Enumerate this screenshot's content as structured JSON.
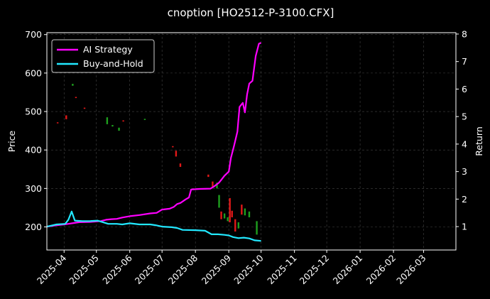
{
  "chart_data": {
    "type": "line",
    "title": "cnoption [HO2512-P-3100.CFX]",
    "ylabel": "Price",
    "y2label": "Return",
    "x_ticks": [
      "2025-04",
      "2025-05",
      "2025-06",
      "2025-07",
      "2025-08",
      "2025-09",
      "2025-10",
      "2025-11",
      "2025-12",
      "2026-01",
      "2026-02",
      "2026-03"
    ],
    "xlim": [
      "2025-03-16",
      "2026-03-31"
    ],
    "ylim": [
      140,
      705
    ],
    "y_ticks": [
      200,
      300,
      400,
      500,
      600,
      700
    ],
    "y2lim": [
      0.15,
      8.05
    ],
    "y2_ticks": [
      1,
      2,
      3,
      4,
      5,
      6,
      7,
      8
    ],
    "grid": true,
    "legend_position": "top-left",
    "series": [
      {
        "name": "AI Strategy",
        "axis": "right",
        "color": "#ff00ff",
        "points": [
          [
            "2025-03-16",
            1.0
          ],
          [
            "2025-03-25",
            1.05
          ],
          [
            "2025-04-01",
            1.08
          ],
          [
            "2025-04-05",
            1.1
          ],
          [
            "2025-04-10",
            1.13
          ],
          [
            "2025-04-15",
            1.16
          ],
          [
            "2025-04-25",
            1.17
          ],
          [
            "2025-05-05",
            1.2
          ],
          [
            "2025-05-10",
            1.25
          ],
          [
            "2025-05-15",
            1.27
          ],
          [
            "2025-05-20",
            1.28
          ],
          [
            "2025-05-25",
            1.33
          ],
          [
            "2025-06-01",
            1.38
          ],
          [
            "2025-06-10",
            1.42
          ],
          [
            "2025-06-20",
            1.48
          ],
          [
            "2025-06-26",
            1.5
          ],
          [
            "2025-07-01",
            1.62
          ],
          [
            "2025-07-08",
            1.65
          ],
          [
            "2025-07-12",
            1.72
          ],
          [
            "2025-07-15",
            1.82
          ],
          [
            "2025-07-18",
            1.86
          ],
          [
            "2025-07-23",
            1.99
          ],
          [
            "2025-07-26",
            2.06
          ],
          [
            "2025-07-28",
            2.35
          ],
          [
            "2025-08-05",
            2.37
          ],
          [
            "2025-08-15",
            2.38
          ],
          [
            "2025-08-18",
            2.45
          ],
          [
            "2025-08-23",
            2.6
          ],
          [
            "2025-08-26",
            2.75
          ],
          [
            "2025-08-28",
            2.85
          ],
          [
            "2025-09-01",
            3.0
          ],
          [
            "2025-09-03",
            3.5
          ],
          [
            "2025-09-06",
            3.95
          ],
          [
            "2025-09-09",
            4.45
          ],
          [
            "2025-09-11",
            5.35
          ],
          [
            "2025-09-14",
            5.5
          ],
          [
            "2025-09-16",
            5.15
          ],
          [
            "2025-09-18",
            5.8
          ],
          [
            "2025-09-20",
            6.2
          ],
          [
            "2025-09-23",
            6.3
          ],
          [
            "2025-09-26",
            7.2
          ],
          [
            "2025-09-29",
            7.65
          ],
          [
            "2025-10-01",
            7.68
          ]
        ]
      },
      {
        "name": "Buy-and-Hold",
        "axis": "right",
        "color": "#22e8ff",
        "points": [
          [
            "2025-03-16",
            1.0
          ],
          [
            "2025-03-25",
            1.08
          ],
          [
            "2025-04-02",
            1.1
          ],
          [
            "2025-04-05",
            1.25
          ],
          [
            "2025-04-08",
            1.55
          ],
          [
            "2025-04-11",
            1.22
          ],
          [
            "2025-04-18",
            1.2
          ],
          [
            "2025-04-25",
            1.2
          ],
          [
            "2025-05-02",
            1.22
          ],
          [
            "2025-05-08",
            1.15
          ],
          [
            "2025-05-12",
            1.1
          ],
          [
            "2025-05-20",
            1.1
          ],
          [
            "2025-05-25",
            1.08
          ],
          [
            "2025-06-01",
            1.12
          ],
          [
            "2025-06-10",
            1.08
          ],
          [
            "2025-06-20",
            1.08
          ],
          [
            "2025-06-25",
            1.05
          ],
          [
            "2025-07-01",
            1.0
          ],
          [
            "2025-07-10",
            0.98
          ],
          [
            "2025-07-15",
            0.95
          ],
          [
            "2025-07-20",
            0.88
          ],
          [
            "2025-08-01",
            0.87
          ],
          [
            "2025-08-10",
            0.85
          ],
          [
            "2025-08-16",
            0.72
          ],
          [
            "2025-08-22",
            0.72
          ],
          [
            "2025-08-28",
            0.7
          ],
          [
            "2025-09-01",
            0.68
          ],
          [
            "2025-09-05",
            0.62
          ],
          [
            "2025-09-10",
            0.58
          ],
          [
            "2025-09-15",
            0.6
          ],
          [
            "2025-09-20",
            0.57
          ],
          [
            "2025-09-25",
            0.5
          ],
          [
            "2025-10-01",
            0.48
          ]
        ]
      }
    ],
    "candles": [
      {
        "date": "2025-03-26",
        "open": 470,
        "close": 472,
        "up": false
      },
      {
        "date": "2025-04-03",
        "open": 490,
        "close": 480,
        "up": false
      },
      {
        "date": "2025-04-09",
        "open": 572,
        "close": 567,
        "up": true
      },
      {
        "date": "2025-04-12",
        "open": 538,
        "close": 535,
        "up": false
      },
      {
        "date": "2025-04-20",
        "open": 510,
        "close": 507,
        "up": false
      },
      {
        "date": "2025-05-11",
        "open": 485,
        "close": 467,
        "up": true
      },
      {
        "date": "2025-05-16",
        "open": 465,
        "close": 461,
        "up": true
      },
      {
        "date": "2025-05-22",
        "open": 458,
        "close": 450,
        "up": true
      },
      {
        "date": "2025-05-26",
        "open": 477,
        "close": 474,
        "up": false
      },
      {
        "date": "2025-06-15",
        "open": 481,
        "close": 478,
        "up": true
      },
      {
        "date": "2025-07-11",
        "open": 410,
        "close": 407,
        "up": false
      },
      {
        "date": "2025-07-14",
        "open": 398,
        "close": 383,
        "up": false
      },
      {
        "date": "2025-07-18",
        "open": 365,
        "close": 356,
        "up": false
      },
      {
        "date": "2025-08-13",
        "open": 336,
        "close": 330,
        "up": false
      },
      {
        "date": "2025-08-17",
        "open": 318,
        "close": 302,
        "up": false
      },
      {
        "date": "2025-08-21",
        "open": 315,
        "close": 300,
        "up": true
      },
      {
        "date": "2025-08-23",
        "open": 283,
        "close": 250,
        "up": true
      },
      {
        "date": "2025-08-25",
        "open": 240,
        "close": 220,
        "up": false
      },
      {
        "date": "2025-08-28",
        "open": 235,
        "close": 222,
        "up": true
      },
      {
        "date": "2025-08-31",
        "open": 225,
        "close": 215,
        "up": true
      },
      {
        "date": "2025-09-02",
        "open": 275,
        "close": 212,
        "up": false
      },
      {
        "date": "2025-09-04",
        "open": 242,
        "close": 225,
        "up": false
      },
      {
        "date": "2025-09-07",
        "open": 220,
        "close": 188,
        "up": false
      },
      {
        "date": "2025-09-10",
        "open": 212,
        "close": 196,
        "up": true
      },
      {
        "date": "2025-09-13",
        "open": 258,
        "close": 232,
        "up": false
      },
      {
        "date": "2025-09-16",
        "open": 248,
        "close": 230,
        "up": true
      },
      {
        "date": "2025-09-20",
        "open": 240,
        "close": 225,
        "up": true
      },
      {
        "date": "2025-09-27",
        "open": 215,
        "close": 180,
        "up": true
      }
    ]
  }
}
